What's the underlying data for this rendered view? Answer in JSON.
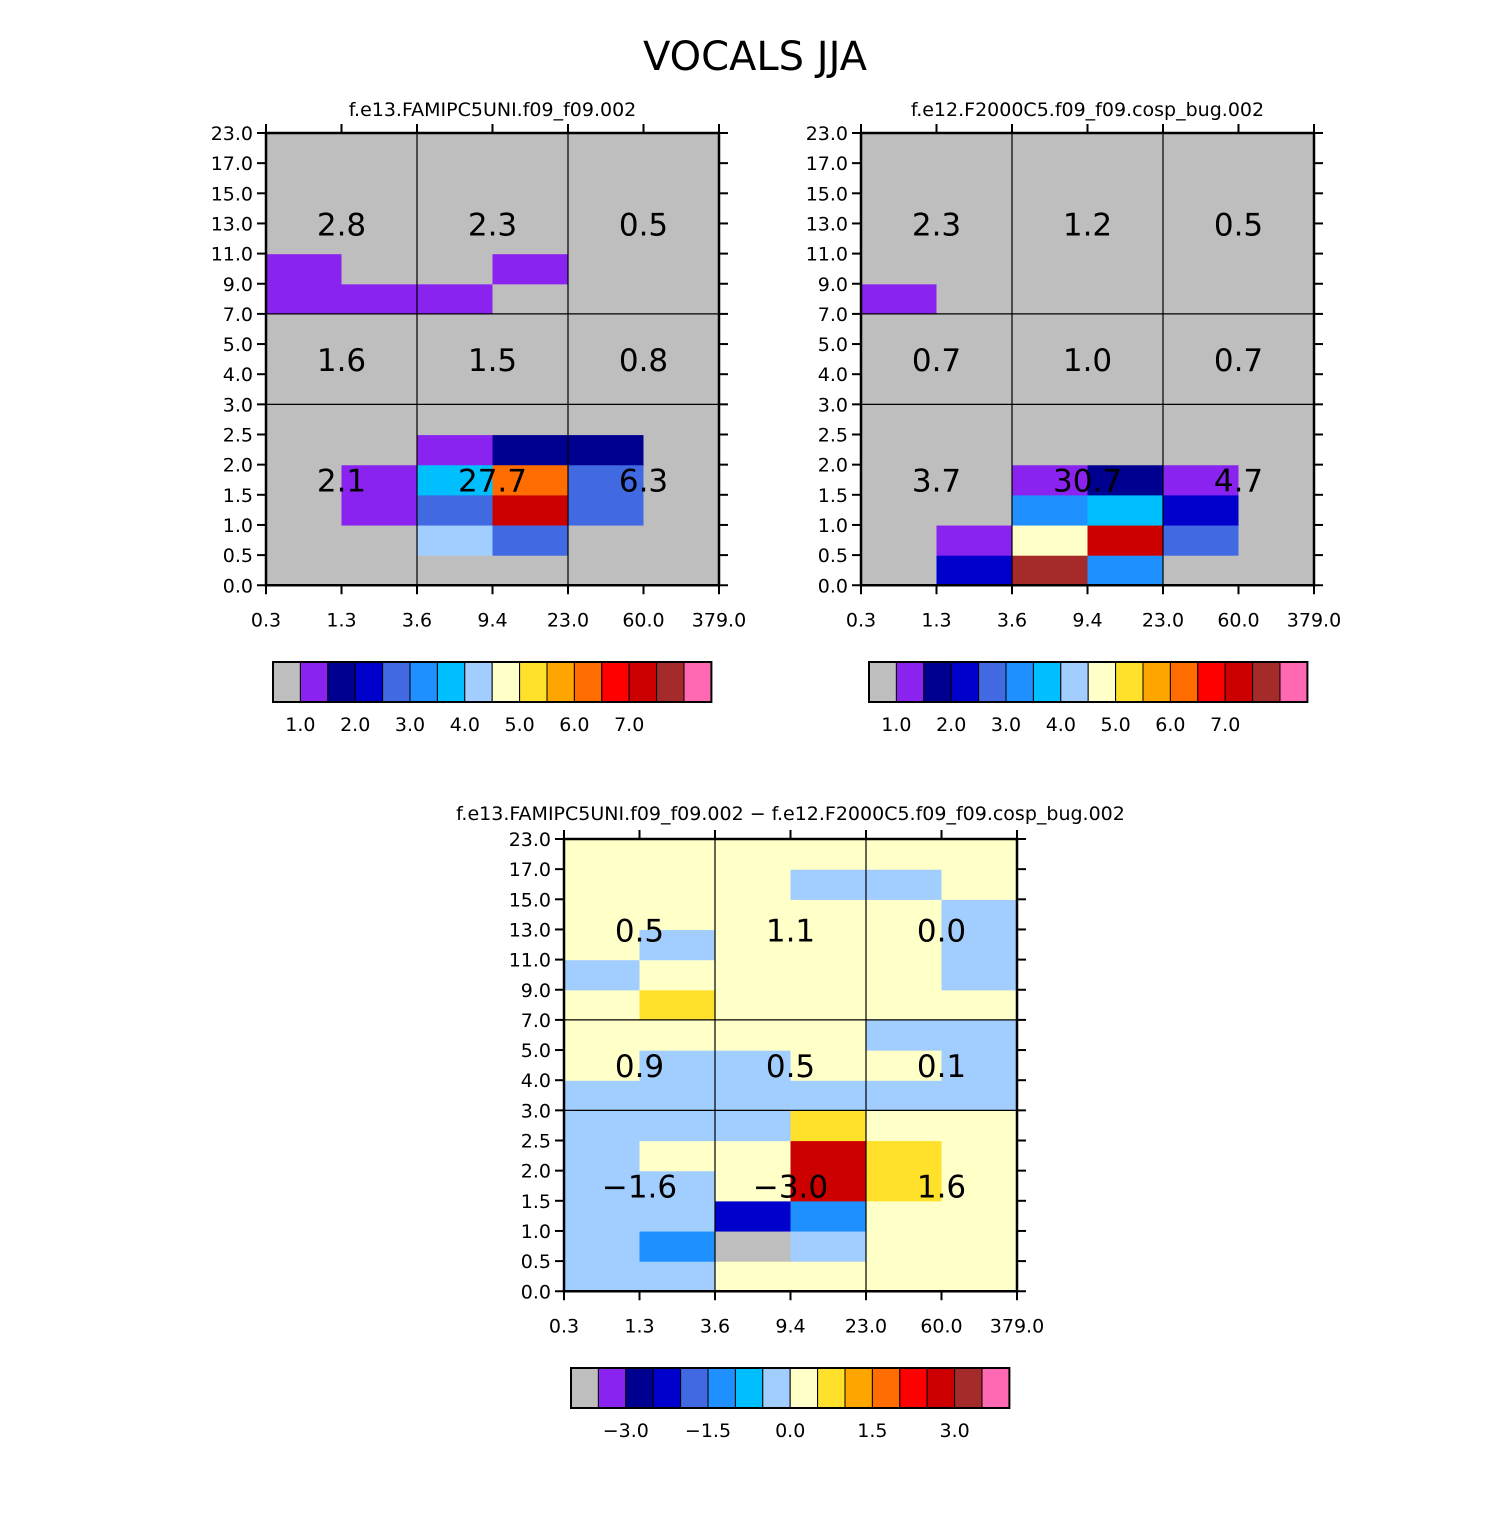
{
  "figure_title": "VOCALS JJA",
  "chart_data": [
    {
      "id": "panel1",
      "type": "heatmap",
      "title": "f.e13.FAMIPC5UNI.f09_f09.002",
      "x_ticks": [
        "0.3",
        "1.3",
        "3.6",
        "9.4",
        "23.0",
        "60.0",
        "379.0"
      ],
      "y_ticks": [
        "0.0",
        "0.5",
        "1.0",
        "1.5",
        "2.0",
        "2.5",
        "3.0",
        "4.0",
        "5.0",
        "7.0",
        "9.0",
        "11.0",
        "13.0",
        "15.0",
        "17.0",
        "23.0"
      ],
      "group_values": [
        [
          "2.8",
          "2.3",
          "0.5"
        ],
        [
          "1.6",
          "1.5",
          "0.8"
        ],
        [
          "2.1",
          "27.7",
          "6.3"
        ]
      ],
      "levels": [
        1,
        1.5,
        2,
        2.5,
        3,
        3.5,
        4,
        4.5,
        5,
        5.5,
        6,
        6.5,
        7,
        7.5
      ],
      "colorbar_labels": [
        "1.0",
        "2.0",
        "3.0",
        "4.0",
        "5.0",
        "6.0",
        "7.0"
      ],
      "cells": [
        [
          0,
          0,
          0,
          0,
          0,
          0
        ],
        [
          0,
          0,
          7,
          4,
          0,
          0
        ],
        [
          0,
          1,
          4,
          13,
          4,
          0
        ],
        [
          0,
          1,
          6,
          11,
          4,
          0
        ],
        [
          0,
          0,
          1,
          2,
          2,
          0
        ],
        [
          0,
          0,
          0,
          0,
          0,
          0
        ],
        [
          0,
          0,
          0,
          0,
          0,
          0
        ],
        [
          0,
          0,
          0,
          0,
          0,
          0
        ],
        [
          0,
          0,
          0,
          0,
          0,
          0
        ],
        [
          1,
          1,
          1,
          0,
          0,
          0
        ],
        [
          1,
          0,
          0,
          1,
          0,
          0
        ],
        [
          0,
          0,
          0,
          0,
          0,
          0
        ],
        [
          0,
          0,
          0,
          0,
          0,
          0
        ],
        [
          0,
          0,
          0,
          0,
          0,
          0
        ],
        [
          0,
          0,
          0,
          0,
          0,
          0
        ]
      ]
    },
    {
      "id": "panel2",
      "type": "heatmap",
      "title": "f.e12.F2000C5.f09_f09.cosp_bug.002",
      "x_ticks": [
        "0.3",
        "1.3",
        "3.6",
        "9.4",
        "23.0",
        "60.0",
        "379.0"
      ],
      "y_ticks": [
        "0.0",
        "0.5",
        "1.0",
        "1.5",
        "2.0",
        "2.5",
        "3.0",
        "4.0",
        "5.0",
        "7.0",
        "9.0",
        "11.0",
        "13.0",
        "15.0",
        "17.0",
        "23.0"
      ],
      "group_values": [
        [
          "2.3",
          "1.2",
          "0.5"
        ],
        [
          "0.7",
          "1.0",
          "0.7"
        ],
        [
          "3.7",
          "30.7",
          "4.7"
        ]
      ],
      "levels": [
        1,
        1.5,
        2,
        2.5,
        3,
        3.5,
        4,
        4.5,
        5,
        5.5,
        6,
        6.5,
        7,
        7.5
      ],
      "colorbar_labels": [
        "1.0",
        "2.0",
        "3.0",
        "4.0",
        "5.0",
        "6.0",
        "7.0"
      ],
      "cells": [
        [
          0,
          3,
          14,
          5,
          0,
          0
        ],
        [
          0,
          1,
          8,
          13,
          4,
          0
        ],
        [
          0,
          0,
          5,
          6,
          3,
          0
        ],
        [
          0,
          0,
          1,
          2,
          1,
          0
        ],
        [
          0,
          0,
          0,
          0,
          0,
          0
        ],
        [
          0,
          0,
          0,
          0,
          0,
          0
        ],
        [
          0,
          0,
          0,
          0,
          0,
          0
        ],
        [
          0,
          0,
          0,
          0,
          0,
          0
        ],
        [
          0,
          0,
          0,
          0,
          0,
          0
        ],
        [
          1,
          0,
          0,
          0,
          0,
          0
        ],
        [
          0,
          0,
          0,
          0,
          0,
          0
        ],
        [
          0,
          0,
          0,
          0,
          0,
          0
        ],
        [
          0,
          0,
          0,
          0,
          0,
          0
        ],
        [
          0,
          0,
          0,
          0,
          0,
          0
        ],
        [
          0,
          0,
          0,
          0,
          0,
          0
        ]
      ]
    },
    {
      "id": "panel3",
      "type": "heatmap",
      "title": "f.e13.FAMIPC5UNI.f09_f09.002 − f.e12.F2000C5.f09_f09.cosp_bug.002",
      "x_ticks": [
        "0.3",
        "1.3",
        "3.6",
        "9.4",
        "23.0",
        "60.0",
        "379.0"
      ],
      "y_ticks": [
        "0.0",
        "0.5",
        "1.0",
        "1.5",
        "2.0",
        "2.5",
        "3.0",
        "4.0",
        "5.0",
        "7.0",
        "9.0",
        "11.0",
        "13.0",
        "15.0",
        "17.0",
        "23.0"
      ],
      "group_values": [
        [
          "0.5",
          "1.1",
          "0.0"
        ],
        [
          "0.9",
          "0.5",
          "0.1"
        ],
        [
          "−1.6",
          "−3.0",
          "1.6"
        ]
      ],
      "levels": [
        -3.5,
        -3,
        -2.5,
        -2,
        -1.5,
        -1,
        -0.5,
        0,
        0.5,
        1,
        1.5,
        2,
        2.5,
        3
      ],
      "colorbar_labels": [
        "−3.0",
        "−1.5",
        "0.0",
        "1.5",
        "3.0"
      ],
      "cells": [
        [
          7,
          7,
          8,
          8,
          8,
          8
        ],
        [
          7,
          5,
          0,
          7,
          8,
          8
        ],
        [
          7,
          7,
          3,
          5,
          8,
          8
        ],
        [
          7,
          7,
          8,
          13,
          9,
          8
        ],
        [
          7,
          8,
          8,
          13,
          9,
          8
        ],
        [
          7,
          7,
          7,
          9,
          8,
          8
        ],
        [
          7,
          7,
          7,
          7,
          7,
          7
        ],
        [
          8,
          7,
          7,
          8,
          8,
          7
        ],
        [
          8,
          8,
          8,
          8,
          7,
          7
        ],
        [
          8,
          9,
          8,
          8,
          8,
          8
        ],
        [
          7,
          8,
          8,
          8,
          8,
          7
        ],
        [
          8,
          7,
          8,
          8,
          8,
          7
        ],
        [
          8,
          8,
          8,
          8,
          8,
          7
        ],
        [
          8,
          8,
          8,
          7,
          7,
          8
        ],
        [
          8,
          8,
          8,
          8,
          8,
          8
        ]
      ]
    }
  ]
}
